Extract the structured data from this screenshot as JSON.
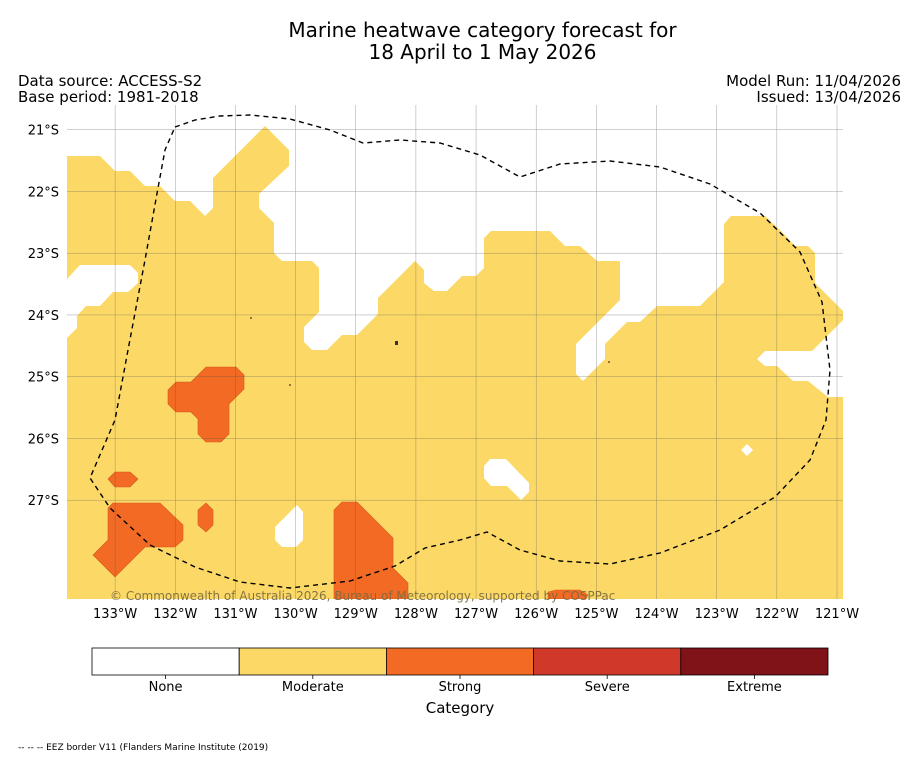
{
  "header": {
    "title_line1": "Marine heatwave category forecast for",
    "title_line2": "18 April to 1 May 2026",
    "data_source": "Data source: ACCESS-S2",
    "base_period": "Base period: 1981-2018",
    "model_run": "Model Run: 11/04/2026",
    "issued": "Issued: 13/04/2026"
  },
  "copyright": "© Commonwealth of Australia 2026, Bureau of Meteorology, supported by COSPPac",
  "footnote": "-- -- -- EEZ border V11 (Flanders Marine Institute (2019)",
  "chart_data": {
    "type": "heatmap",
    "title": "Marine heatwave category forecast for 18 April to 1 May 2026",
    "lon_range": [
      -133.8,
      -120.9
    ],
    "lat_range": [
      -28.6,
      -20.6
    ],
    "x_ticks": [
      "133°W",
      "132°W",
      "131°W",
      "130°W",
      "129°W",
      "128°W",
      "127°W",
      "126°W",
      "125°W",
      "124°W",
      "123°W",
      "122°W",
      "121°W"
    ],
    "y_ticks": [
      "21°S",
      "22°S",
      "23°S",
      "24°S",
      "25°S",
      "26°S",
      "27°S"
    ],
    "grid": true,
    "legend": {
      "title": "Category",
      "categories": [
        "None",
        "Moderate",
        "Strong",
        "Severe",
        "Extreme"
      ],
      "colors": [
        "#ffffff",
        "#fcd966",
        "#f26a24",
        "#d03829",
        "#7f1317"
      ]
    },
    "dominant_category": "Moderate",
    "strong_regions": [
      "around 131.5°W 25°S",
      "133°W–132°W 27°S–28°S",
      "129.4°W–128.3°W 27°S–28.5°S"
    ],
    "eez_border": "dashed black line"
  }
}
